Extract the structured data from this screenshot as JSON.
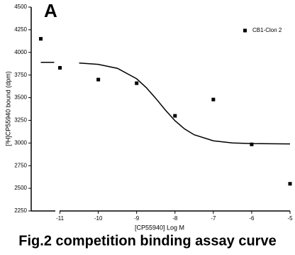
{
  "panel_label": "A",
  "caption": "Fig.2 competition binding assay curve",
  "chart_data": {
    "type": "scatter",
    "x_label": "[CP55940] Log M",
    "y_label": "[³H]CP55940 bound (dpm)",
    "xlim": [
      -11.75,
      -5
    ],
    "xticks": [
      -11,
      -10,
      -9,
      -8,
      -7,
      -6,
      -5
    ],
    "ylim": [
      2250,
      4500
    ],
    "yticks": [
      2250,
      2500,
      2750,
      3000,
      3250,
      3500,
      3750,
      4000,
      4250,
      4500
    ],
    "legend": "top-right",
    "series": [
      {
        "name": "CB1-Clon 2",
        "color": "#000000",
        "x": [
          -11.5,
          -11,
          -10,
          -9,
          -8,
          -7,
          -6,
          -5
        ],
        "values": [
          4150,
          3830,
          3700,
          3660,
          3300,
          3480,
          2985,
          2550
        ]
      }
    ],
    "fit": {
      "color": "#000000",
      "x": [
        -11.5,
        -11.15,
        -11,
        -10.5,
        -10,
        -9.5,
        -9,
        -8.75,
        -8.5,
        -8.25,
        -8,
        -7.75,
        -7.5,
        -7,
        -6.5,
        -6,
        -5
      ],
      "values": [
        3890,
        3890,
        null,
        3883,
        3868,
        3824,
        3709,
        3612,
        3492,
        3363,
        3246,
        3155,
        3091,
        3024,
        3001,
        2994,
        2990
      ]
    }
  }
}
